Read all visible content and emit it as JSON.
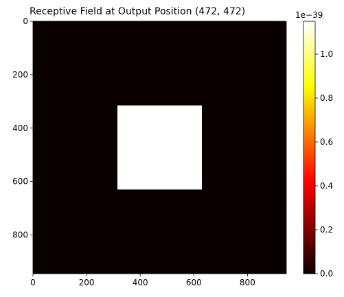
{
  "chart_data": {
    "type": "heatmap",
    "title": "Receptive Field at Output Position (472, 472)",
    "image_extent": {
      "x": [
        0,
        945
      ],
      "y": [
        0,
        945
      ]
    },
    "y_inverted": true,
    "colormap": "hot",
    "background_value": 0.0,
    "highlight_region": {
      "x0": 315,
      "x1": 630,
      "y0": 315,
      "y1": 630,
      "value": 1.15e-39
    },
    "x_ticks": [
      "0",
      "200",
      "400",
      "600",
      "800"
    ],
    "x_tick_values": [
      0,
      200,
      400,
      600,
      800
    ],
    "y_ticks": [
      "0",
      "200",
      "400",
      "600",
      "800"
    ],
    "y_tick_values": [
      0,
      200,
      400,
      600,
      800
    ],
    "colorbar": {
      "min": 0.0,
      "max": 1.15,
      "offset_label": "1e−39",
      "ticks": [
        "0.0",
        "0.2",
        "0.4",
        "0.6",
        "0.8",
        "1.0"
      ],
      "tick_values": [
        0.0,
        0.2,
        0.4,
        0.6,
        0.8,
        1.0
      ]
    },
    "grid": false
  }
}
